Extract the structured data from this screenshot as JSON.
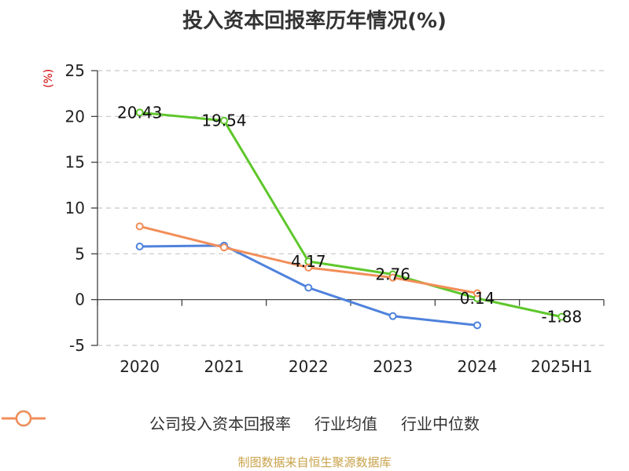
{
  "chart_data": {
    "type": "line",
    "title": "投入资本回报率历年情况(%)",
    "ylabel": "(%)",
    "xlabel": "",
    "categories": [
      "2020",
      "2021",
      "2022",
      "2023",
      "2024",
      "2025H1"
    ],
    "ylim": [
      -5,
      25
    ],
    "yticks": [
      25,
      20,
      15,
      10,
      5,
      0,
      -5
    ],
    "grid": true,
    "legend_position": "bottom",
    "series": [
      {
        "name": "公司投入资本回报率",
        "color": "#5ec72b",
        "values": [
          20.43,
          19.54,
          4.17,
          2.76,
          0.14,
          -1.88
        ],
        "labels": [
          "20.43",
          "19.54",
          "4.17",
          "2.76",
          "0.14",
          "-1.88"
        ]
      },
      {
        "name": "行业均值",
        "color": "#4f82dc",
        "values": [
          5.8,
          5.9,
          1.3,
          -1.8,
          -2.8,
          null
        ]
      },
      {
        "name": "行业中位数",
        "color": "#f28e5a",
        "values": [
          8.0,
          5.7,
          3.5,
          2.4,
          0.7,
          null
        ]
      }
    ]
  },
  "source_text": "制图数据来自恒生聚源数据库"
}
